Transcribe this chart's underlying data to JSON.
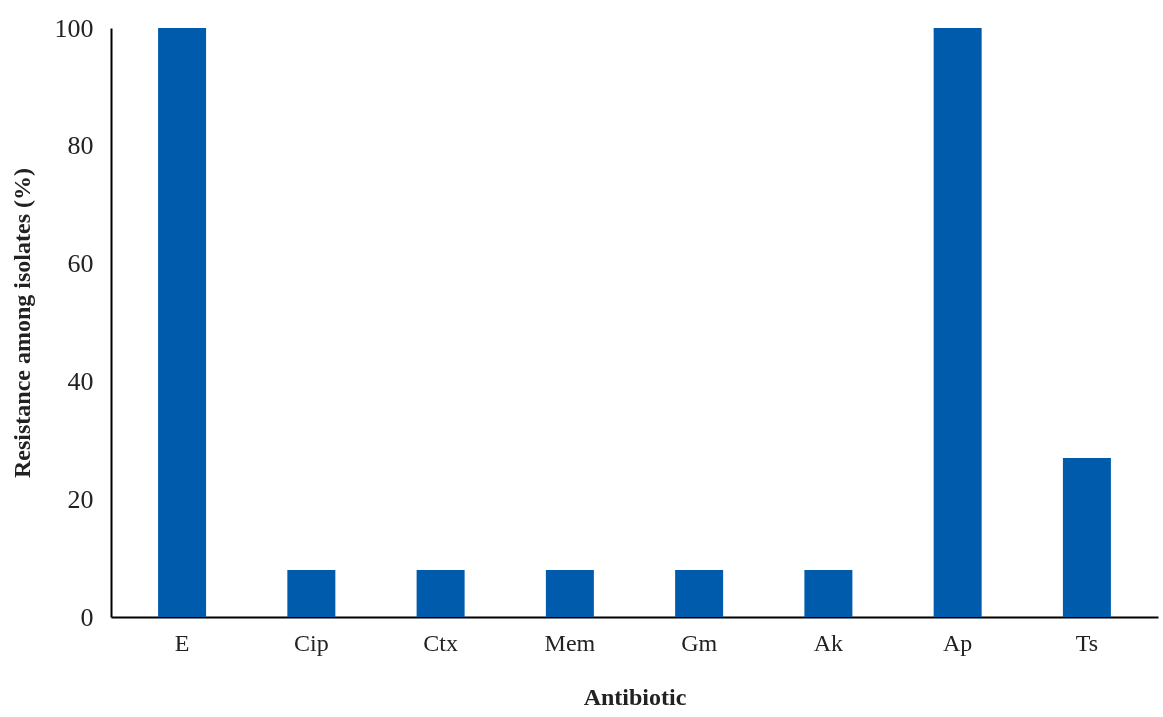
{
  "chart_data": {
    "type": "bar",
    "xlabel": "Antibiotic",
    "ylabel": "Resistance among isolates (%)",
    "categories": [
      "E",
      "Cip",
      "Ctx",
      "Mem",
      "Gm",
      "Ak",
      "Ap",
      "Ts"
    ],
    "values": [
      100,
      8,
      8,
      8,
      8,
      8,
      100,
      27
    ],
    "color": "#005bac",
    "ylim": [
      0,
      100
    ],
    "yticks": [
      0,
      20,
      40,
      60,
      80,
      100
    ],
    "grid": false
  }
}
